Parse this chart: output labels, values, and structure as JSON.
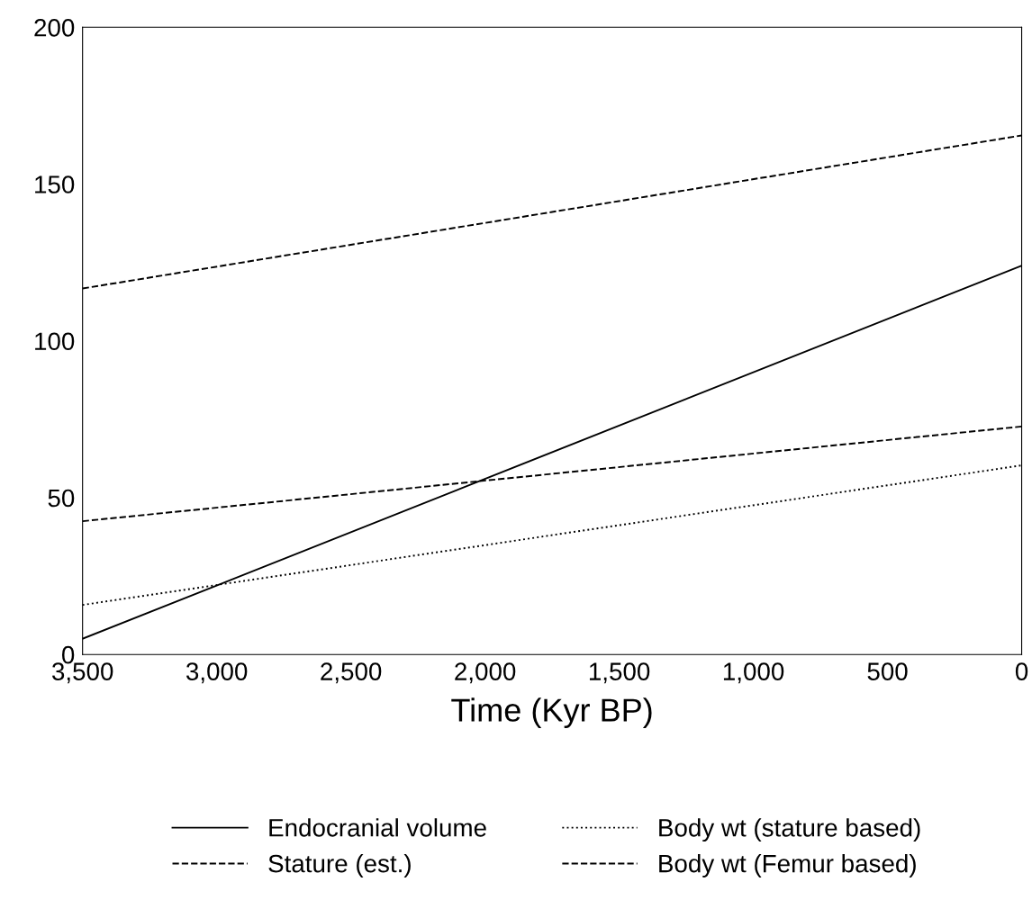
{
  "chart_data": {
    "type": "line",
    "xlabel": "Time (Kyr BP)",
    "x": [
      3500,
      0
    ],
    "xlim": [
      3500,
      0
    ],
    "xticks": [
      {
        "value": 3500,
        "label": "3,500"
      },
      {
        "value": 3000,
        "label": "3,000"
      },
      {
        "value": 2500,
        "label": "2,500"
      },
      {
        "value": 2000,
        "label": "2,000"
      },
      {
        "value": 1500,
        "label": "1,500"
      },
      {
        "value": 1000,
        "label": "1,000"
      },
      500,
      0
    ],
    "ylim": [
      0,
      200
    ],
    "yticks": [
      0,
      50,
      100,
      150,
      200
    ],
    "grid": false,
    "legend": "bottom",
    "marker": "none",
    "series": [
      {
        "name": "Endocranial volume",
        "color": "#000000",
        "line_style": "solid",
        "values": [
          5,
          124
        ]
      },
      {
        "name": "Stature (est.)",
        "color": "#000000",
        "line_style": "dashed",
        "values": [
          116.7,
          165.5
        ]
      },
      {
        "name": "Body wt (stature based)",
        "color": "#000000",
        "line_style": "dotted",
        "values": [
          15.8,
          60.3
        ]
      },
      {
        "name": "Body wt (Femur based)",
        "color": "#000000",
        "line_style": "dashed",
        "values": [
          42.5,
          72.7
        ]
      }
    ]
  }
}
